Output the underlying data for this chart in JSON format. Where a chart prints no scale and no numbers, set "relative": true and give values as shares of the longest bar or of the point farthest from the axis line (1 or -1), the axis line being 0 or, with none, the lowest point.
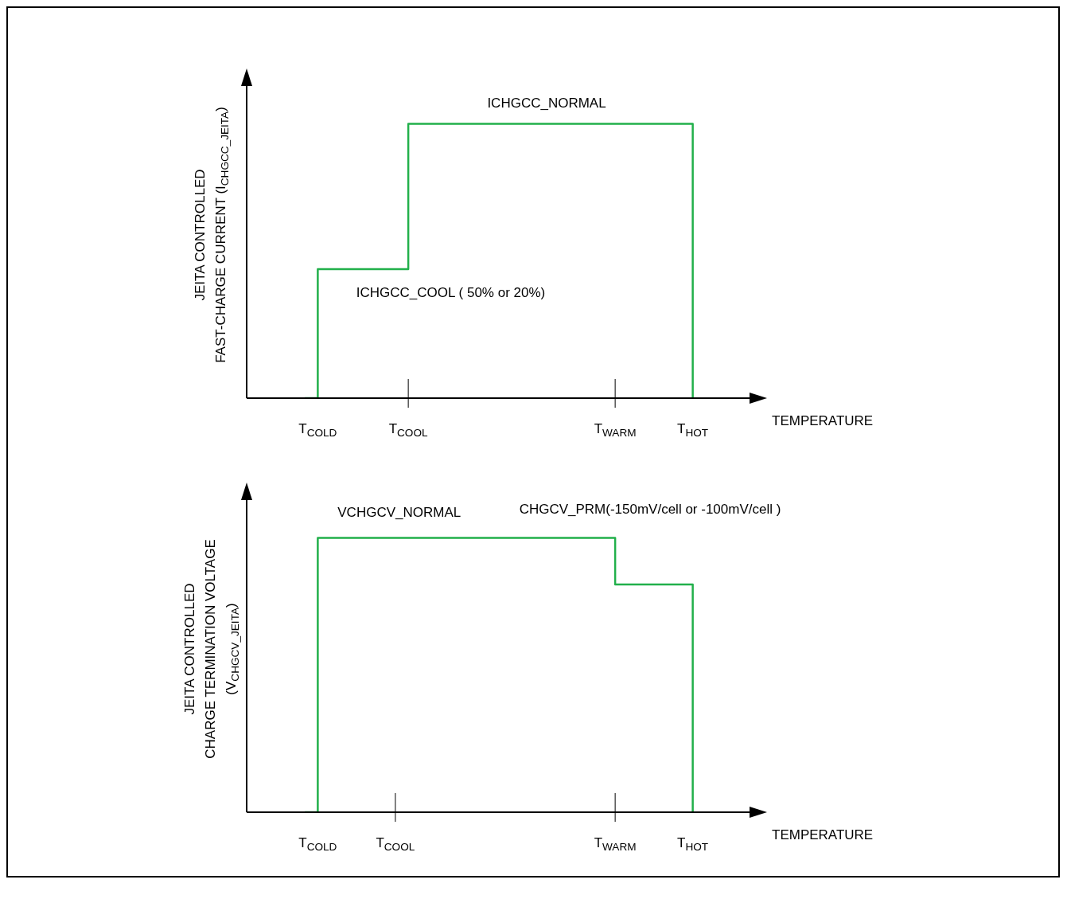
{
  "chart_data": [
    {
      "type": "step",
      "relative": true,
      "xlabel": "TEMPERATURE",
      "ylabel": "JEITA CONTROLLED\nFAST-CHARGE CURRENT (I$_{CHGCC_JEITA}$)",
      "categories": [
        null,
        null,
        null,
        null,
        null,
        "T$_{COLD}$",
        null,
        null,
        null,
        null,
        null,
        null,
        "T$_{COOL}$",
        null,
        null,
        null,
        null,
        null,
        null,
        null,
        null,
        null,
        null,
        null,
        null,
        null,
        null,
        null,
        "T$_{WARM}$",
        null,
        null,
        null,
        null,
        null,
        "T$_{HOT}$",
        null,
        null,
        null,
        null,
        null
      ],
      "series": [
        {
          "color": "#22b04b",
          "values": [
            null,
            null,
            null,
            null,
            0,
            0.47,
            0.47,
            0.47,
            0.47,
            0.47,
            0.47,
            0.47,
            1,
            1,
            1,
            1,
            1,
            1,
            1,
            1,
            1,
            1,
            1,
            1,
            1,
            1,
            1,
            1,
            1,
            1,
            1,
            1,
            1,
            1,
            0,
            null,
            null,
            null,
            null,
            null
          ]
        }
      ],
      "annotations": [
        "ICHGCC_NORMAL",
        "ICHGCC_COOL ( 50% or 20%)"
      ],
      "grid": false,
      "legend": false,
      "marker": "none",
      "line_style": "solid"
    },
    {
      "type": "step",
      "relative": true,
      "xlabel": "TEMPERATURE",
      "ylabel": "JEITA CONTROLLED\nCHARGE TERMINATION VOLTAGE\n(V$_{CHGCV_JEITA}$)",
      "categories": [
        null,
        null,
        null,
        null,
        null,
        "T$_{COLD}$",
        null,
        null,
        null,
        null,
        null,
        "T$_{COOL}$",
        null,
        null,
        null,
        null,
        null,
        null,
        null,
        null,
        null,
        null,
        null,
        null,
        null,
        null,
        null,
        null,
        "T$_{WARM}$",
        null,
        null,
        null,
        null,
        null,
        "T$_{HOT}$",
        null,
        null,
        null,
        null,
        null
      ],
      "series": [
        {
          "color": "#22b04b",
          "values": [
            null,
            null,
            null,
            null,
            0,
            1,
            1,
            1,
            1,
            1,
            1,
            1,
            1,
            1,
            1,
            1,
            1,
            1,
            1,
            1,
            1,
            1,
            1,
            1,
            1,
            1,
            1,
            1,
            0.83,
            0.83,
            0.83,
            0.83,
            0.83,
            0.83,
            0,
            null,
            null,
            null,
            null,
            null
          ]
        }
      ],
      "annotations": [
        "VCHGCV_NORMAL",
        "CHGCV_PRM(-150mV/cell or -100mV/cell )"
      ],
      "grid": false,
      "legend": false,
      "marker": "none",
      "line_style": "solid"
    }
  ]
}
